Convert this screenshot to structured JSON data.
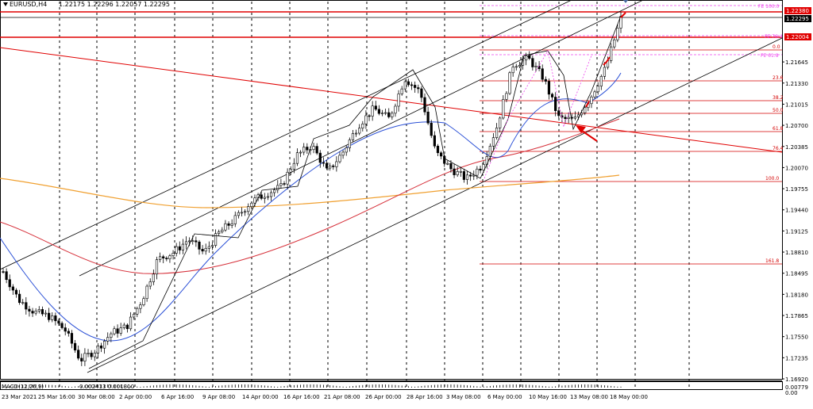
{
  "header": {
    "symbol": "EURUSD,H4",
    "values": "1.22175 1.22296 1.22057 1.22295"
  },
  "indicator": {
    "name": "MACD(12,26,9)",
    "values": "0.002413 0.001310"
  },
  "price_axis": {
    "ticks": [
      "1.22380",
      "1.22295",
      "1.22004",
      "1.21645",
      "1.21330",
      "1.21015",
      "1.20700",
      "1.20385",
      "1.20070",
      "1.19755",
      "1.19440",
      "1.19125",
      "1.18810",
      "1.18495",
      "1.18180",
      "1.17865",
      "1.17550",
      "1.17235",
      "1.16920"
    ],
    "macd_ticks": [
      "0.00779",
      "0.00"
    ],
    "current_price_label": "1.22295",
    "level_labels": [
      "1.22380",
      "1.22004"
    ]
  },
  "time_axis": {
    "ticks": [
      "23 Mar 2021",
      "25 Mar 16:00",
      "30 Mar 08:00",
      "2 Apr 00:00",
      "6 Apr 16:00",
      "9 Apr 08:00",
      "14 Apr 00:00",
      "16 Apr 16:00",
      "21 Apr 08:00",
      "26 Apr 00:00",
      "28 Apr 16:00",
      "3 May 08:00",
      "6 May 00:00",
      "10 May 16:00",
      "13 May 08:00",
      "18 May 00:00"
    ]
  },
  "fib_retracement": {
    "labels": [
      "0.0",
      "23.6",
      "38.2",
      "50.0",
      "61.8",
      "76.4",
      "100.0",
      "161.8"
    ]
  },
  "fib_expansion": {
    "labels": [
      "FE 100.0",
      "FE 76.4",
      "FE 61.8"
    ]
  },
  "colors": {
    "level_red": "#e00000",
    "fib_red": "#d40000",
    "fib_magenta": "#ee44ee",
    "ma_blue": "#2a4fd6",
    "ma_red": "#d6303a",
    "ma_orange": "#f0a030",
    "candles": "#000000"
  },
  "chart_data": {
    "type": "candlestick",
    "title": "EURUSD,H4",
    "indicator": "MACD(12,26,9)",
    "ylim": [
      1.1692,
      1.2245
    ],
    "close_path": [
      [
        "23 Mar 2021",
        1.1852
      ],
      [
        "24 Mar 2021",
        1.181
      ],
      [
        "25 Mar 16:00",
        1.1792
      ],
      [
        "26 Mar 2021",
        1.1785
      ],
      [
        "29 Mar 2021",
        1.1765
      ],
      [
        "30 Mar 08:00",
        1.172
      ],
      [
        "31 Mar 2021",
        1.1735
      ],
      [
        "1 Apr 2021",
        1.176
      ],
      [
        "2 Apr 00:00",
        1.177
      ],
      [
        "5 Apr 2021",
        1.181
      ],
      [
        "6 Apr 16:00",
        1.187
      ],
      [
        "7 Apr 2021",
        1.188
      ],
      [
        "8 Apr 2021",
        1.19
      ],
      [
        "9 Apr 08:00",
        1.188
      ],
      [
        "12 Apr 2021",
        1.191
      ],
      [
        "13 Apr 2021",
        1.193
      ],
      [
        "14 Apr 00:00",
        1.1955
      ],
      [
        "15 Apr 2021",
        1.1968
      ],
      [
        "16 Apr 16:00",
        1.1978
      ],
      [
        "19 Apr 2021",
        1.2025
      ],
      [
        "20 Apr 2021",
        1.204
      ],
      [
        "21 Apr 08:00",
        1.2
      ],
      [
        "22 Apr 2021",
        1.203
      ],
      [
        "23 Apr 2021",
        1.207
      ],
      [
        "26 Apr 00:00",
        1.2095
      ],
      [
        "27 Apr 2021",
        1.208
      ],
      [
        "28 Apr 16:00",
        1.214
      ],
      [
        "29 Apr 2021",
        1.212
      ],
      [
        "30 Apr 2021",
        1.203
      ],
      [
        "3 May 08:00",
        1.2005
      ],
      [
        "4 May 2021",
        1.199
      ],
      [
        "5 May 2021",
        1.201
      ],
      [
        "6 May 00:00",
        1.207
      ],
      [
        "7 May 2021",
        1.216
      ],
      [
        "10 May 16:00",
        1.217
      ],
      [
        "11 May 2021",
        1.214
      ],
      [
        "12 May 2021",
        1.208
      ],
      [
        "13 May 08:00",
        1.2078
      ],
      [
        "14 May 2021",
        1.211
      ],
      [
        "17 May 2021",
        1.2155
      ],
      [
        "18 May 00:00",
        1.2229
      ]
    ]
  }
}
